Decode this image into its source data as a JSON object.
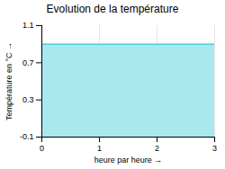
{
  "chart_data": {
    "type": "area",
    "title": "Evolution de la température",
    "xlabel": "heure par heure",
    "ylabel": "Température en °C",
    "x": [
      0,
      3
    ],
    "series": [
      {
        "type": "area",
        "color": "#aae8f0",
        "values": [
          0.9,
          0.9
        ]
      },
      {
        "type": "line",
        "color": "#55ccdd",
        "values": [
          0.9,
          0.9
        ]
      }
    ],
    "xlim": [
      0,
      3
    ],
    "ylim": [
      -0.1,
      1.1
    ],
    "xticks": [
      0,
      1,
      2,
      3
    ],
    "yticks": [
      -0.1,
      0.3,
      0.7,
      1.1
    ],
    "grid": "x"
  }
}
